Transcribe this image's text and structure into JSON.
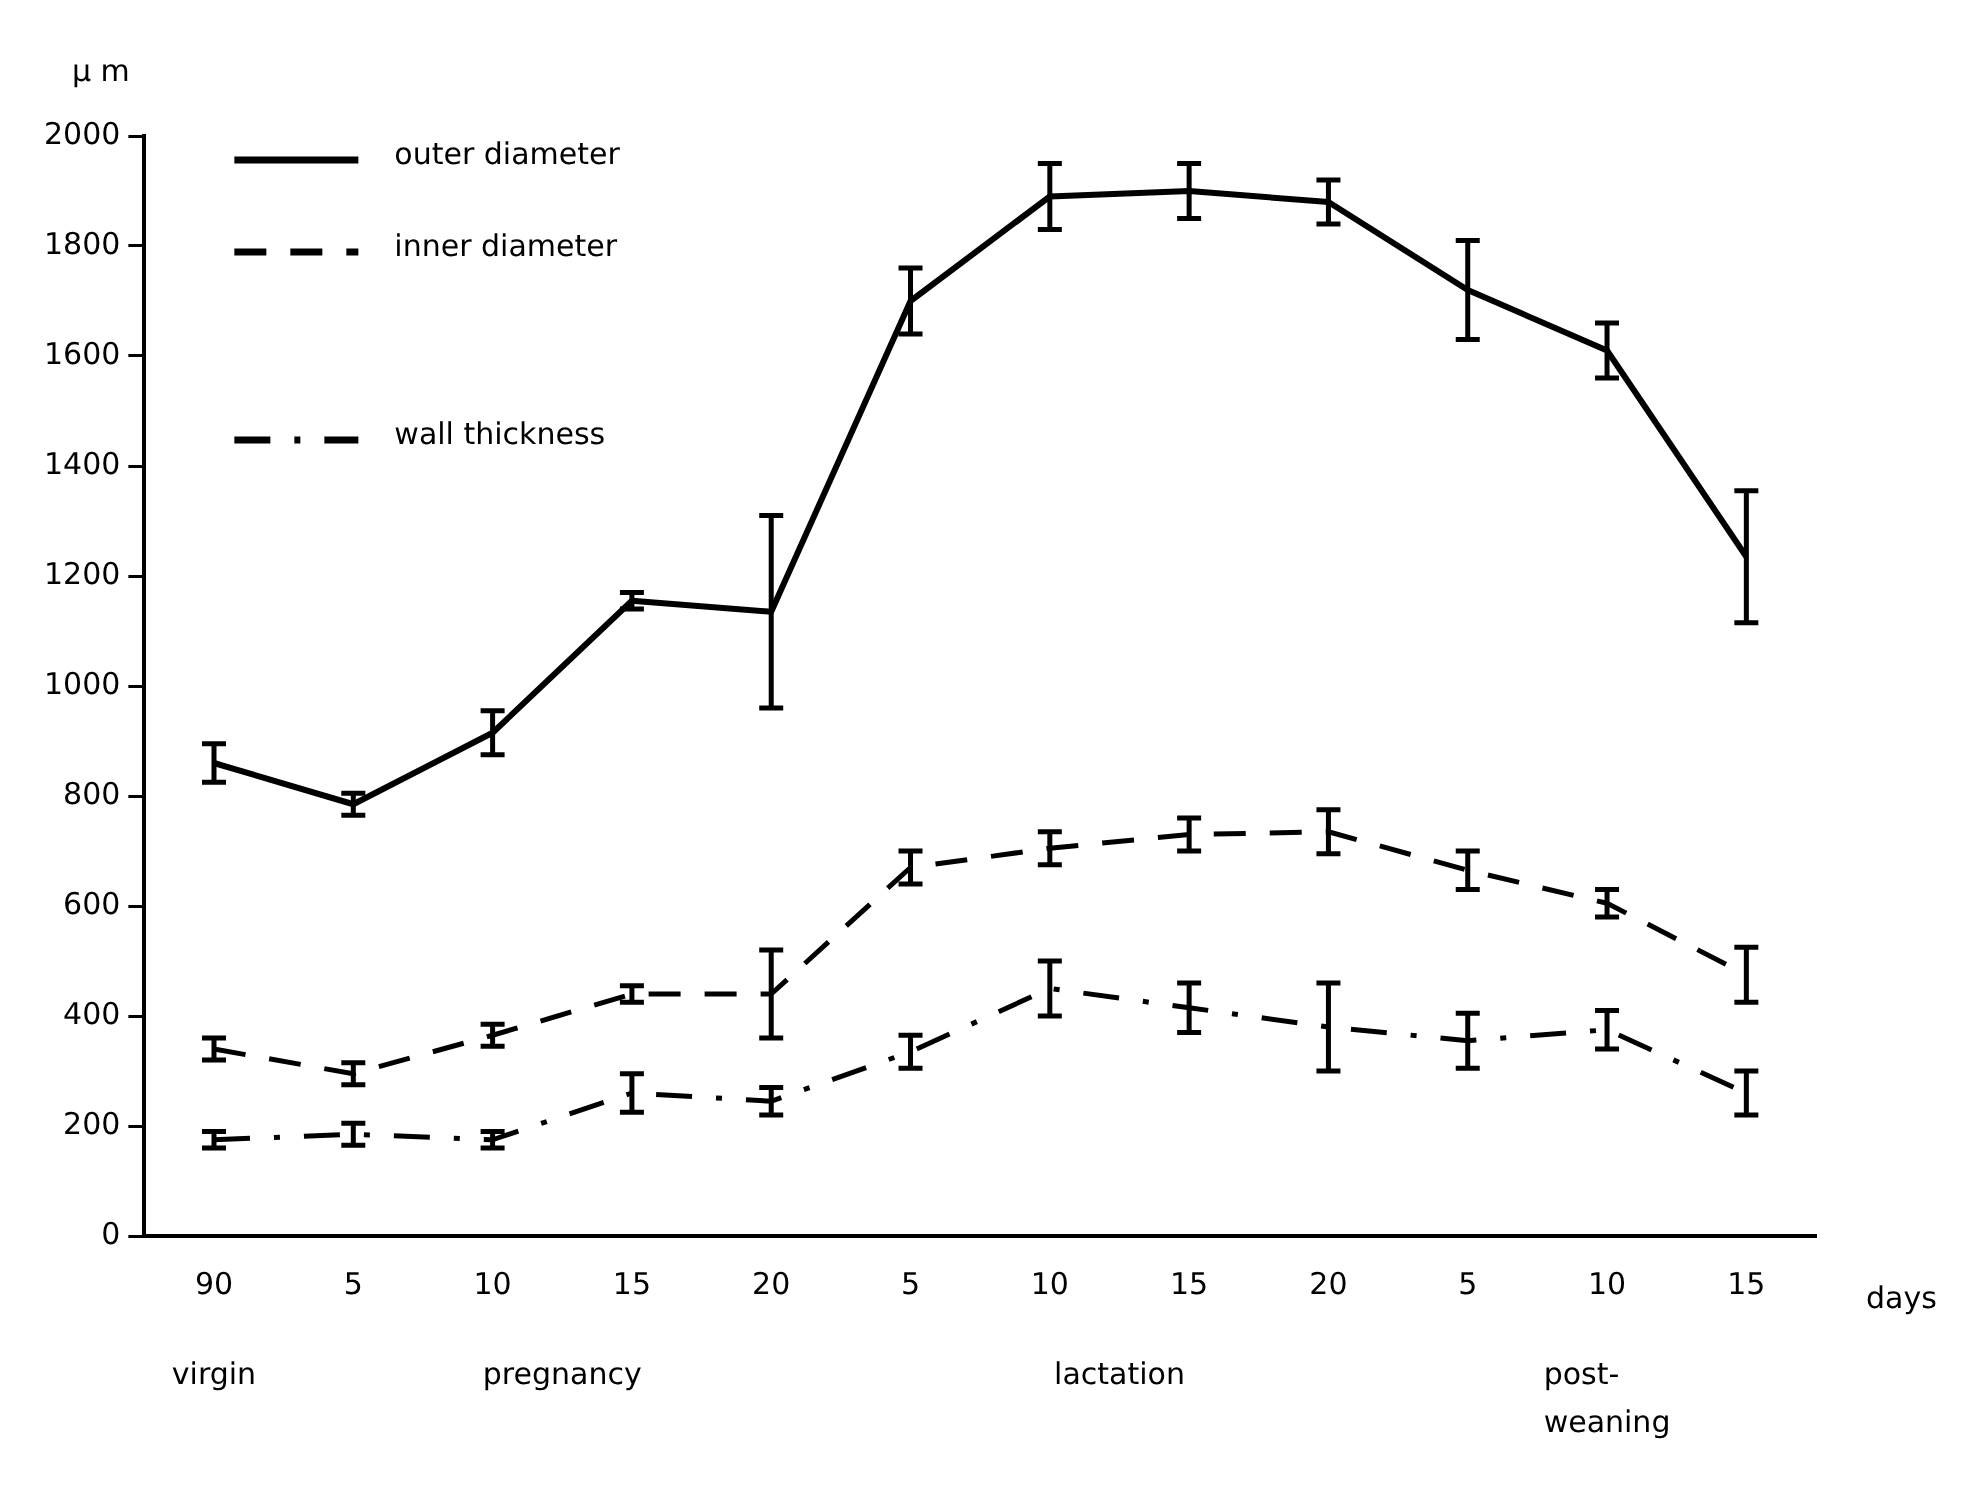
{
  "chart_data": {
    "type": "line",
    "ylabel": "μ m",
    "categories": [
      "90",
      "5",
      "10",
      "15",
      "20",
      "5",
      "10",
      "15",
      "20",
      "5",
      "10",
      "15"
    ],
    "series": [
      {
        "name": "outer diameter",
        "color": "#000000",
        "line_style": "solid",
        "values": [
          860,
          785,
          915,
          1155,
          1135,
          1700,
          1890,
          1900,
          1880,
          1720,
          1610,
          1235
        ],
        "errors": [
          35,
          20,
          40,
          15,
          175,
          60,
          60,
          50,
          40,
          90,
          50,
          120
        ]
      },
      {
        "name": "inner diameter",
        "color": "#000000",
        "line_style": "dashed",
        "values": [
          340,
          295,
          365,
          440,
          440,
          670,
          705,
          730,
          735,
          665,
          605,
          475
        ],
        "errors": [
          20,
          20,
          20,
          15,
          80,
          30,
          30,
          30,
          40,
          35,
          25,
          50
        ]
      },
      {
        "name": "wall thickness",
        "color": "#000000",
        "line_style": "dotted",
        "values": [
          175,
          185,
          175,
          260,
          245,
          335,
          450,
          415,
          380,
          355,
          375,
          260
        ],
        "errors": [
          15,
          20,
          15,
          35,
          25,
          30,
          50,
          45,
          80,
          50,
          35,
          40
        ]
      }
    ],
    "annotations": [
      "days",
      "virgin",
      "pregnancy",
      "lactation",
      "post-\nweaning"
    ],
    "ylim": [
      0,
      2000
    ],
    "yticks": [
      0,
      200,
      400,
      600,
      800,
      1000,
      1200,
      1400,
      1600,
      1800,
      2000
    ],
    "grid": false,
    "legend": "top left"
  }
}
